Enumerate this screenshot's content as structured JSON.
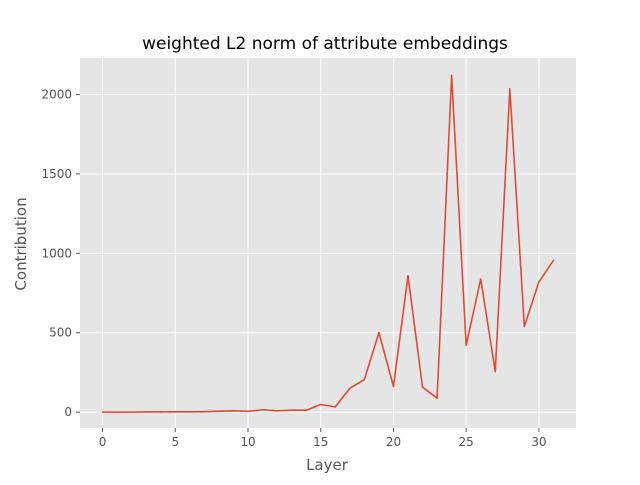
{
  "chart_data": {
    "type": "line",
    "title": "weighted L2 norm of attribute embeddings",
    "xlabel": "Layer",
    "ylabel": "Contribution",
    "xlim": [
      -1.55,
      32.55
    ],
    "ylim": [
      -100,
      2230
    ],
    "xticks": [
      0,
      5,
      10,
      15,
      20,
      25,
      30
    ],
    "yticks": [
      0,
      500,
      1000,
      1500,
      2000
    ],
    "grid": true,
    "colors": {
      "line": "#E24A33",
      "plot_bg": "#E5E5E5",
      "grid": "#FFFFFF",
      "tick_text": "#555555",
      "label_text": "#555555"
    },
    "series": [
      {
        "x": [
          0,
          1,
          2,
          3,
          4,
          5,
          6,
          7,
          8,
          9,
          10,
          11,
          12,
          13,
          14,
          15,
          16,
          17,
          18,
          19,
          20,
          21,
          22,
          23,
          24,
          25,
          26,
          27,
          28,
          29,
          30,
          31
        ],
        "values": [
          0,
          0,
          0,
          1,
          1,
          2,
          2,
          3,
          6,
          8,
          5,
          15,
          8,
          12,
          12,
          48,
          33,
          150,
          205,
          500,
          162,
          858,
          157,
          88,
          2120,
          422,
          838,
          256,
          2035,
          540,
          820,
          955
        ]
      }
    ]
  }
}
